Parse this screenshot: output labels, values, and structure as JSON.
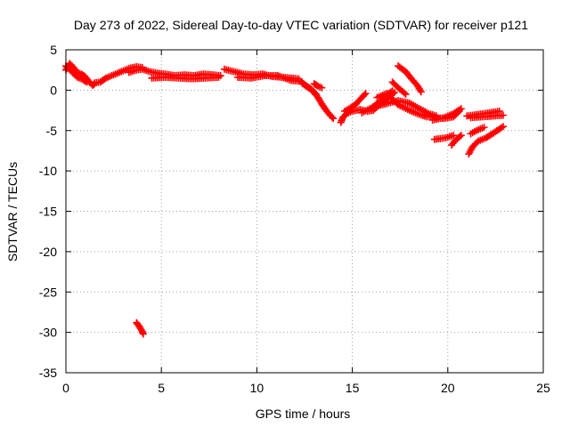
{
  "chart_data": {
    "type": "scatter",
    "title": "Day 273 of 2022, Sidereal Day-to-day VTEC variation (SDTVAR) for receiver p121",
    "xlabel": "GPS time / hours",
    "ylabel": "SDTVAR / TECUs",
    "xlim": [
      0,
      25
    ],
    "ylim": [
      -35,
      5
    ],
    "xticks": [
      0,
      5,
      10,
      15,
      20,
      25
    ],
    "yticks": [
      5,
      0,
      -5,
      -10,
      -15,
      -20,
      -25,
      -30,
      -35
    ],
    "grid": true,
    "marker": "+",
    "color": "#ff0000",
    "series": [
      {
        "name": "segment-1",
        "points": [
          [
            0.0,
            2.5
          ],
          [
            0.2,
            3.3
          ],
          [
            0.4,
            2.8
          ],
          [
            0.6,
            2.2
          ],
          [
            0.8,
            2.0
          ],
          [
            1.0,
            1.7
          ],
          [
            1.2,
            1.1
          ],
          [
            1.4,
            0.6
          ],
          [
            1.5,
            0.8
          ]
        ]
      },
      {
        "name": "segment-2",
        "points": [
          [
            0.0,
            3.0
          ],
          [
            0.3,
            2.3
          ],
          [
            0.6,
            1.6
          ],
          [
            0.9,
            1.3
          ],
          [
            1.1,
            1.0
          ]
        ]
      },
      {
        "name": "segment-3",
        "points": [
          [
            1.5,
            0.9
          ],
          [
            1.8,
            1.0
          ],
          [
            2.1,
            1.5
          ],
          [
            2.5,
            1.9
          ],
          [
            2.9,
            2.3
          ],
          [
            3.3,
            2.7
          ],
          [
            3.7,
            2.9
          ],
          [
            4.0,
            2.8
          ]
        ]
      },
      {
        "name": "segment-4",
        "points": [
          [
            3.3,
            2.2
          ],
          [
            3.7,
            2.5
          ],
          [
            4.0,
            2.6
          ],
          [
            4.4,
            2.3
          ],
          [
            4.8,
            2.1
          ],
          [
            5.2,
            2.0
          ],
          [
            5.7,
            1.8
          ],
          [
            6.2,
            1.9
          ],
          [
            6.7,
            1.8
          ],
          [
            7.2,
            2.0
          ],
          [
            7.7,
            1.9
          ],
          [
            8.1,
            1.8
          ]
        ]
      },
      {
        "name": "segment-5",
        "points": [
          [
            4.5,
            1.5
          ],
          [
            5.2,
            1.6
          ],
          [
            5.9,
            1.5
          ],
          [
            6.6,
            1.4
          ],
          [
            7.3,
            1.5
          ],
          [
            8.0,
            1.6
          ]
        ]
      },
      {
        "name": "segment-6",
        "points": [
          [
            8.3,
            2.6
          ],
          [
            8.8,
            2.3
          ],
          [
            9.3,
            2.0
          ],
          [
            9.8,
            1.9
          ],
          [
            10.3,
            2.0
          ],
          [
            10.8,
            1.7
          ],
          [
            11.3,
            1.6
          ],
          [
            11.8,
            1.5
          ],
          [
            12.2,
            1.4
          ]
        ]
      },
      {
        "name": "segment-7",
        "points": [
          [
            9.0,
            1.6
          ],
          [
            9.7,
            1.5
          ],
          [
            10.4,
            1.8
          ],
          [
            11.1,
            1.8
          ],
          [
            11.8,
            1.2
          ],
          [
            12.3,
            1.1
          ],
          [
            12.6,
            0.5
          ],
          [
            12.9,
            0.0
          ],
          [
            13.1,
            -0.5
          ]
        ]
      },
      {
        "name": "segment-8",
        "points": [
          [
            12.4,
            0.8
          ],
          [
            12.8,
            0.2
          ],
          [
            13.0,
            -0.3
          ],
          [
            13.2,
            -0.9
          ],
          [
            13.4,
            -1.7
          ],
          [
            13.6,
            -2.4
          ],
          [
            13.8,
            -3.0
          ],
          [
            14.0,
            -3.5
          ]
        ]
      },
      {
        "name": "segment-9",
        "points": [
          [
            13.0,
            0.8
          ],
          [
            13.2,
            0.5
          ],
          [
            13.4,
            0.3
          ]
        ]
      },
      {
        "name": "segment-10",
        "points": [
          [
            14.4,
            -4.0
          ],
          [
            14.5,
            -3.4
          ],
          [
            14.7,
            -2.9
          ],
          [
            15.0,
            -2.6
          ],
          [
            15.4,
            -2.4
          ],
          [
            15.8,
            -2.6
          ],
          [
            16.1,
            -2.5
          ],
          [
            16.5,
            -1.6
          ],
          [
            16.9,
            -0.9
          ],
          [
            17.2,
            -0.3
          ]
        ]
      },
      {
        "name": "segment-11",
        "points": [
          [
            14.6,
            -2.6
          ],
          [
            14.9,
            -2.2
          ],
          [
            15.2,
            -1.7
          ],
          [
            15.5,
            -0.9
          ],
          [
            15.7,
            -0.4
          ]
        ]
      },
      {
        "name": "segment-12",
        "points": [
          [
            15.5,
            -2.8
          ],
          [
            16.0,
            -2.2
          ],
          [
            16.5,
            -1.3
          ],
          [
            16.8,
            -0.6
          ],
          [
            17.1,
            -0.1
          ]
        ]
      },
      {
        "name": "segment-13",
        "points": [
          [
            16.4,
            -1.9
          ],
          [
            16.9,
            -1.6
          ],
          [
            17.4,
            -1.3
          ],
          [
            18.0,
            -1.6
          ],
          [
            18.6,
            -2.4
          ],
          [
            19.0,
            -2.9
          ],
          [
            19.4,
            -3.2
          ]
        ]
      },
      {
        "name": "segment-14",
        "points": [
          [
            16.3,
            -0.9
          ],
          [
            16.8,
            -0.4
          ],
          [
            17.4,
            -1.8
          ],
          [
            18.0,
            -2.5
          ],
          [
            18.5,
            -3.0
          ],
          [
            18.9,
            -3.3
          ]
        ]
      },
      {
        "name": "segment-15",
        "points": [
          [
            17.4,
            3.0
          ],
          [
            17.8,
            2.3
          ],
          [
            18.1,
            1.4
          ],
          [
            18.4,
            0.6
          ],
          [
            18.6,
            -0.2
          ]
        ]
      },
      {
        "name": "segment-16",
        "points": [
          [
            17.1,
            1.0
          ],
          [
            17.4,
            0.3
          ],
          [
            17.8,
            -0.5
          ]
        ]
      },
      {
        "name": "segment-17",
        "points": [
          [
            18.8,
            -3.1
          ],
          [
            19.3,
            -3.4
          ],
          [
            19.8,
            -3.5
          ],
          [
            20.3,
            -3.3
          ],
          [
            20.6,
            -2.6
          ]
        ]
      },
      {
        "name": "segment-18",
        "points": [
          [
            19.2,
            -3.7
          ],
          [
            19.8,
            -3.4
          ],
          [
            20.3,
            -2.9
          ],
          [
            20.7,
            -2.3
          ]
        ]
      },
      {
        "name": "segment-19",
        "points": [
          [
            19.3,
            -6.1
          ],
          [
            19.9,
            -5.9
          ],
          [
            20.3,
            -5.6
          ]
        ]
      },
      {
        "name": "segment-20",
        "points": [
          [
            20.2,
            -6.8
          ],
          [
            20.4,
            -6.2
          ],
          [
            20.7,
            -5.6
          ]
        ]
      },
      {
        "name": "segment-21",
        "points": [
          [
            21.0,
            -3.2
          ],
          [
            21.6,
            -3.0
          ],
          [
            22.2,
            -2.8
          ],
          [
            22.7,
            -2.6
          ]
        ]
      },
      {
        "name": "segment-22",
        "points": [
          [
            21.2,
            -3.4
          ],
          [
            21.8,
            -3.3
          ],
          [
            22.4,
            -3.2
          ],
          [
            22.9,
            -3.1
          ]
        ]
      },
      {
        "name": "segment-23",
        "points": [
          [
            21.2,
            -5.4
          ],
          [
            21.5,
            -5.0
          ],
          [
            21.9,
            -4.6
          ]
        ]
      },
      {
        "name": "segment-24",
        "points": [
          [
            21.1,
            -7.9
          ],
          [
            21.3,
            -7.0
          ],
          [
            21.6,
            -6.3
          ],
          [
            22.0,
            -5.9
          ],
          [
            22.4,
            -5.3
          ],
          [
            22.9,
            -4.5
          ]
        ]
      },
      {
        "name": "segment-25",
        "points": [
          [
            3.7,
            -28.8
          ],
          [
            3.85,
            -29.3
          ],
          [
            4.0,
            -29.9
          ],
          [
            4.05,
            -30.2
          ]
        ]
      }
    ]
  }
}
